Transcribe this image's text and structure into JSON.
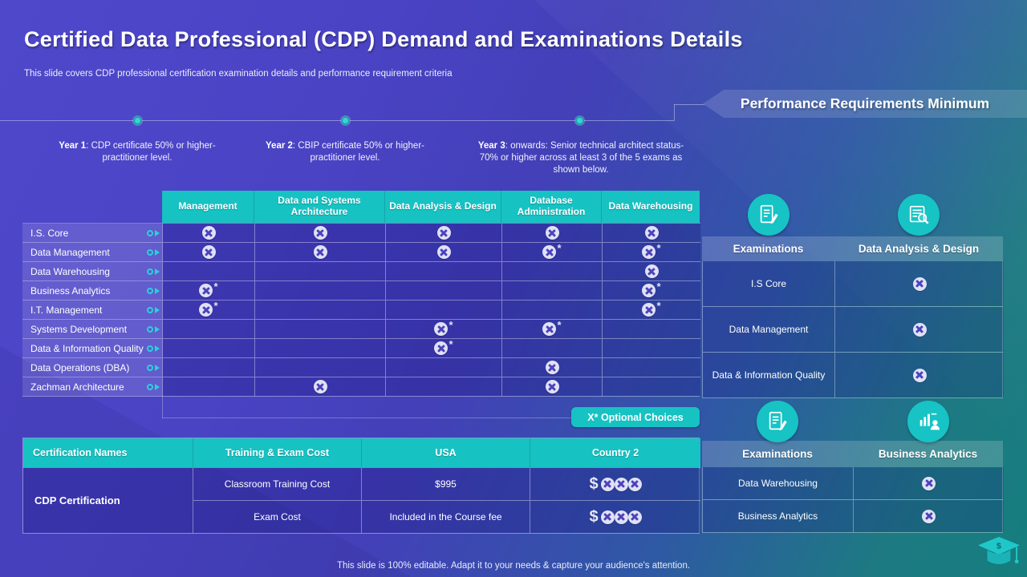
{
  "slide": {
    "title": "Certified Data Professional (CDP) Demand and Examinations Details",
    "subtitle": "This slide covers CDP professional certification examination details and performance requirement criteria",
    "footer": "This slide is 100% editable. Adapt it to your needs & capture your audience's attention."
  },
  "banner": {
    "label": "Performance Requirements Minimum"
  },
  "timeline": [
    {
      "label": "Year 1",
      "text": ": CDP certificate 50% or higher- practitioner level."
    },
    {
      "label": "Year 2",
      "text": ": CBIP certificate 50% or higher- practitioner level."
    },
    {
      "label": "Year 3",
      "text": ":  onwards: Senior technical architect status-70% or higher across at least 3 of the 5 exams as shown below."
    }
  ],
  "matrix": {
    "columns": [
      "Management",
      "Data and Systems Architecture",
      "Data Analysis & Design",
      "Database Administration",
      "Data Warehousing"
    ],
    "rows": [
      {
        "label": "I.S. Core",
        "cells": [
          "x",
          "x",
          "x",
          "x",
          "x"
        ]
      },
      {
        "label": "Data Management",
        "cells": [
          "x",
          "x",
          "x",
          "x*",
          "x*"
        ]
      },
      {
        "label": "Data Warehousing",
        "cells": [
          "",
          "",
          "",
          "",
          "x"
        ]
      },
      {
        "label": "Business Analytics",
        "cells": [
          "x*",
          "",
          "",
          "",
          "x*"
        ]
      },
      {
        "label": "I.T. Management",
        "cells": [
          "x*",
          "",
          "",
          "",
          "x*"
        ]
      },
      {
        "label": "Systems Development",
        "cells": [
          "",
          "",
          "x*",
          "x*",
          ""
        ]
      },
      {
        "label": "Data & Information Quality",
        "cells": [
          "",
          "",
          "x*",
          "",
          ""
        ]
      },
      {
        "label": "Data Operations (DBA)",
        "cells": [
          "",
          "",
          "",
          "x",
          ""
        ]
      },
      {
        "label": "Zachman Architecture",
        "cells": [
          "",
          "x",
          "",
          "x",
          ""
        ]
      }
    ],
    "legend": "X* Optional Choices"
  },
  "cost_table": {
    "headers": [
      "Certification Names",
      "Training & Exam Cost",
      "USA",
      "Country 2"
    ],
    "row_group": "CDP Certification",
    "rows": [
      {
        "item": "Classroom Training Cost",
        "usa": "$995",
        "country2": "$xxx"
      },
      {
        "item": "Exam Cost",
        "usa": "Included in the Course fee",
        "country2": "$xxx"
      }
    ]
  },
  "requirements_panels": [
    {
      "icon1": "exam-checklist-icon",
      "icon2": "data-analysis-icon",
      "col1": "Examinations",
      "col2": "Data Analysis & Design",
      "rows": [
        {
          "label": "I.S Core",
          "mark": "x"
        },
        {
          "label": "Data Management",
          "mark": "x"
        },
        {
          "label": "Data & Information Quality",
          "mark": "x"
        }
      ]
    },
    {
      "icon1": "exam-checklist-icon",
      "icon2": "business-analytics-icon",
      "col1": "Examinations",
      "col2": "Business Analytics",
      "rows": [
        {
          "label": "Data Warehousing",
          "mark": "x"
        },
        {
          "label": "Business Analytics",
          "mark": "x"
        }
      ]
    }
  ],
  "colors": {
    "accent_teal": "#17c2c3",
    "bg_purple": "#4a43c4",
    "bg_teal": "#157e7e",
    "x_circle": "#e0e1f6"
  }
}
